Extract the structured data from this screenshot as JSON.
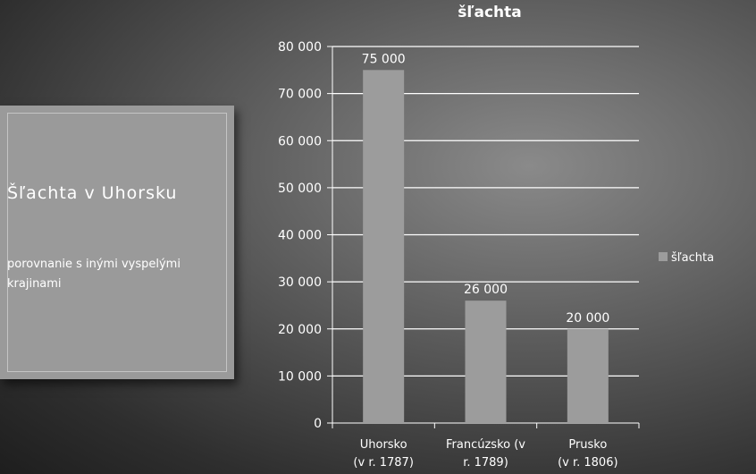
{
  "slide": {
    "title": "Šľachta v Uhorsku",
    "subtitle": "porovnanie s inými vyspelými krajinami"
  },
  "chart_data": {
    "type": "bar",
    "title": "šľachta",
    "categories": [
      [
        "Uhorsko",
        "(v r. 1787)"
      ],
      [
        "Francúzsko (v",
        "r. 1789)"
      ],
      [
        "Prusko",
        "(v r. 1806)"
      ]
    ],
    "series": [
      {
        "name": "šľachta",
        "values": [
          75000,
          26000,
          20000
        ]
      }
    ],
    "data_labels": [
      "75 000",
      "26 000",
      "20 000"
    ],
    "y_ticks": [
      "0",
      "10 000",
      "20 000",
      "30 000",
      "40 000",
      "50 000",
      "60 000",
      "70 000",
      "80 000"
    ],
    "ylim": [
      0,
      80000
    ],
    "grid": true,
    "legend_position": "right",
    "colors": {
      "bar": "#9c9c9c",
      "text": "#ffffff",
      "grid": "#ffffff"
    }
  }
}
